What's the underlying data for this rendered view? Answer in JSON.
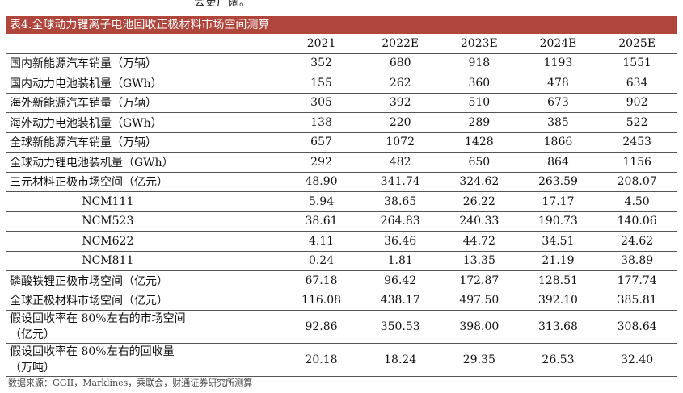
{
  "top_fragment": "会更广阔。",
  "table_title": "表4.全球动力锂离子电池回收正极材料市场空间测算",
  "columns": [
    "",
    "2021",
    "2022E",
    "2023E",
    "2024E",
    "2025E"
  ],
  "rows": [
    {
      "label": "国内新能源汽车销量（万辆）",
      "values": [
        "352",
        "680",
        "918",
        "1193",
        "1551"
      ]
    },
    {
      "label": "国内动力电池装机量（GWh）",
      "values": [
        "155",
        "262",
        "360",
        "478",
        "634"
      ]
    },
    {
      "label": "海外新能源汽车销量（万辆）",
      "values": [
        "305",
        "392",
        "510",
        "673",
        "902"
      ]
    },
    {
      "label": "海外动力电池装机量（GWh）",
      "values": [
        "138",
        "220",
        "289",
        "385",
        "522"
      ]
    },
    {
      "label": "全球新能源汽车销量（万辆）",
      "values": [
        "657",
        "1072",
        "1428",
        "1866",
        "2453"
      ]
    },
    {
      "label": "全球动力锂电池装机量（GWh）",
      "values": [
        "292",
        "482",
        "650",
        "864",
        "1156"
      ]
    },
    {
      "label": "三元材料正极市场空间（亿元）",
      "values": [
        "48.90",
        "341.74",
        "324.62",
        "263.59",
        "208.07"
      ]
    },
    {
      "label": "NCM111",
      "values": [
        "5.94",
        "38.65",
        "26.22",
        "17.17",
        "4.50"
      ]
    },
    {
      "label": "NCM523",
      "values": [
        "38.61",
        "264.83",
        "240.33",
        "190.73",
        "140.06"
      ]
    },
    {
      "label": "NCM622",
      "values": [
        "4.11",
        "36.46",
        "44.72",
        "34.51",
        "24.62"
      ]
    },
    {
      "label": "NCM811",
      "values": [
        "0.24",
        "1.81",
        "13.35",
        "21.19",
        "38.89"
      ]
    },
    {
      "label": "磷酸铁锂正极市场空间（亿元）",
      "values": [
        "67.18",
        "96.42",
        "172.87",
        "128.51",
        "177.74"
      ]
    },
    {
      "label": "全球正极材料市场空间（亿元）",
      "values": [
        "116.08",
        "438.17",
        "497.50",
        "392.10",
        "385.81"
      ]
    },
    {
      "label_line1": "假设回收率在 80%左右的市场空间",
      "label_line2": "（亿元）",
      "values": [
        "92.86",
        "350.53",
        "398.00",
        "313.68",
        "308.64"
      ]
    },
    {
      "label_line1": "假设回收率在 80%左右的回收量",
      "label_line2": "（万吨）",
      "values": [
        "20.18",
        "18.24",
        "29.35",
        "26.53",
        "32.40"
      ]
    }
  ],
  "source_note": "数据来源：GGII，Marklines，乘联会，财通证券研究所测算",
  "colors": {
    "title_bar": "#b0453c",
    "title_text": "#ffffff"
  }
}
